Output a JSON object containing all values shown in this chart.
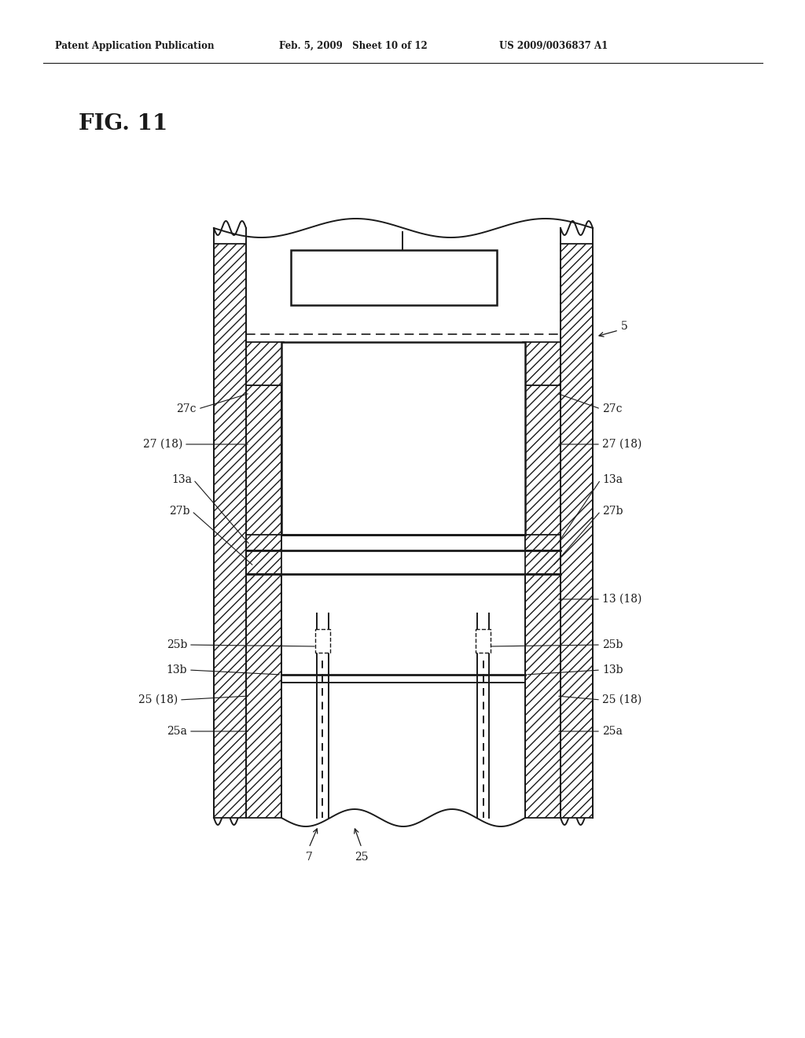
{
  "bg_color": "#ffffff",
  "line_color": "#1a1a1a",
  "title": "FIG. 11",
  "header_left": "Patent Application Publication",
  "header_mid": "Feb. 5, 2009   Sheet 10 of 12",
  "header_right": "US 2009/0036837 A1"
}
